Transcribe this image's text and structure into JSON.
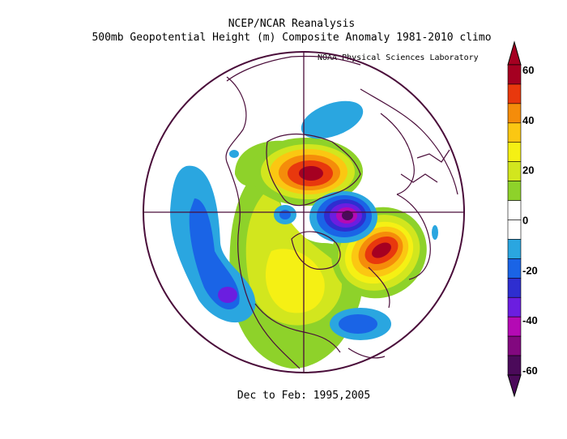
{
  "header": {
    "title": "NCEP/NCAR Reanalysis",
    "subtitle": "500mb Geopotential Height (m) Composite Anomaly 1981-2010 climo",
    "credit": "NOAA Physical Sciences Laboratory"
  },
  "footer": {
    "period": "Dec to Feb: 1995,2005"
  },
  "colorbar": {
    "ticks": [
      "60",
      "40",
      "20",
      "0",
      "-20",
      "-40",
      "-60"
    ],
    "colors": [
      "#a50021",
      "#e8380d",
      "#f58c0a",
      "#fbc712",
      "#f5f014",
      "#d2e61e",
      "#8ed22a",
      "#ffffff",
      "#ffffff",
      "#2aa6e0",
      "#1a64e6",
      "#2e2ed0",
      "#6b1ee0",
      "#b40ab4",
      "#82087f",
      "#4b0a5a"
    ]
  },
  "map": {
    "projection": "north-polar-stereographic",
    "anomalies": [
      {
        "name": "north-canada-high",
        "sign": "positive",
        "peak_m": 60
      },
      {
        "name": "greenland-ridge-high",
        "sign": "positive",
        "peak_m": 20
      },
      {
        "name": "north-atlantic-high",
        "sign": "positive",
        "peak_m": 60
      },
      {
        "name": "north-america-high",
        "sign": "positive",
        "peak_m": 30
      },
      {
        "name": "arctic-low",
        "sign": "negative",
        "peak_m": -60
      },
      {
        "name": "north-pacific-low",
        "sign": "negative",
        "peak_m": -40
      },
      {
        "name": "subtropical-atlantic-low",
        "sign": "negative",
        "peak_m": -30
      },
      {
        "name": "siberia-low",
        "sign": "negative",
        "peak_m": -20
      }
    ]
  }
}
